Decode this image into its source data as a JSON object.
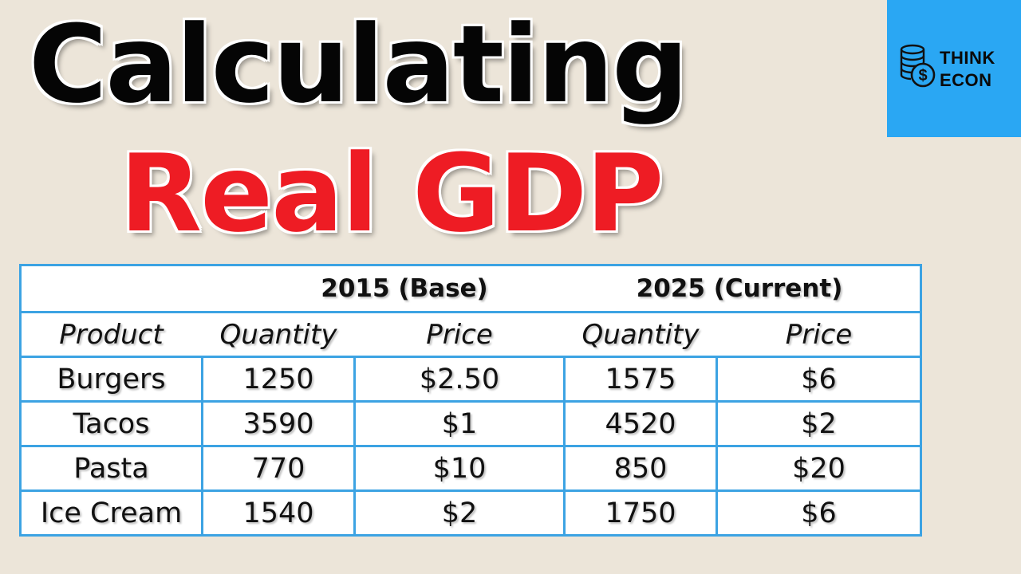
{
  "title": {
    "line1": "Calculating",
    "line2": "Real GDP"
  },
  "logo": {
    "line1": "THINK",
    "line2": "ECON",
    "icon": "coin-stack-dollar-icon",
    "color": "#2aa7f3"
  },
  "colors": {
    "background": "#ece5d9",
    "title_black": "#050505",
    "title_red": "#ee1c24",
    "table_border": "#3ca3e3"
  },
  "table": {
    "group_headers": [
      "2015 (Base)",
      "2025 (Current)"
    ],
    "column_headers": [
      "Product",
      "Quantity",
      "Price",
      "Quantity",
      "Price"
    ],
    "rows": [
      [
        "Burgers",
        "1250",
        "$2.50",
        "1575",
        "$6"
      ],
      [
        "Tacos",
        "3590",
        "$1",
        "4520",
        "$2"
      ],
      [
        "Pasta",
        "770",
        "$10",
        "850",
        "$20"
      ],
      [
        "Ice Cream",
        "1540",
        "$2",
        "1750",
        "$6"
      ]
    ]
  }
}
